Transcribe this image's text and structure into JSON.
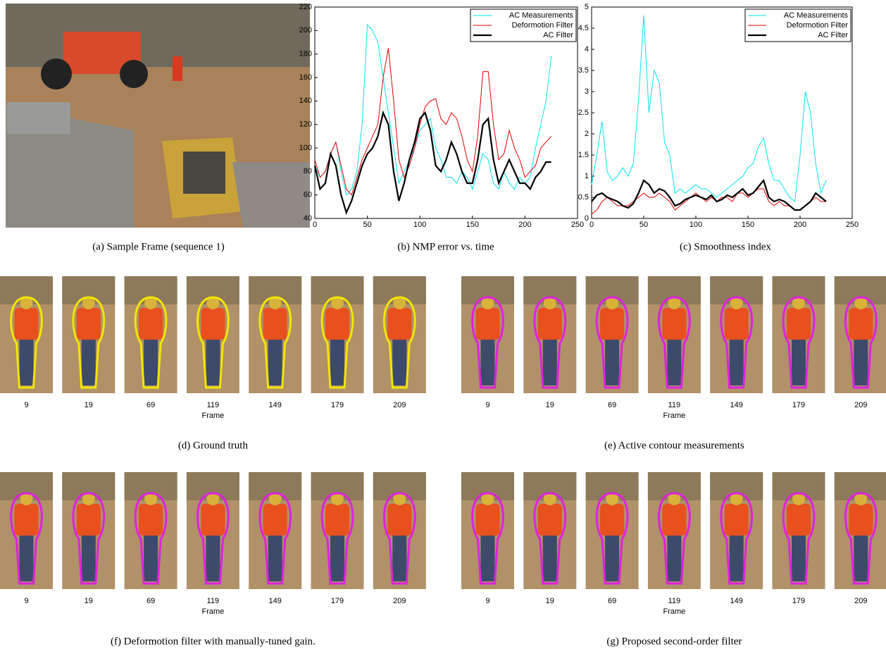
{
  "sample_frame": {
    "caption": "(a) Sample Frame (sequence 1)"
  },
  "chart_data": [
    {
      "type": "line",
      "caption": "(b) NMP error vs. time",
      "x": [
        0,
        5,
        10,
        15,
        20,
        25,
        30,
        35,
        40,
        45,
        50,
        55,
        60,
        65,
        70,
        75,
        80,
        85,
        90,
        95,
        100,
        105,
        110,
        115,
        120,
        125,
        130,
        135,
        140,
        145,
        150,
        155,
        160,
        165,
        170,
        175,
        180,
        185,
        190,
        195,
        200,
        205,
        210,
        215,
        220,
        225
      ],
      "series": [
        {
          "name": "AC Measurements",
          "color": "#00e5ee",
          "width": 1,
          "values": [
            85,
            75,
            80,
            95,
            105,
            80,
            60,
            65,
            80,
            120,
            205,
            200,
            190,
            160,
            130,
            100,
            70,
            80,
            90,
            100,
            115,
            120,
            125,
            100,
            90,
            75,
            75,
            70,
            80,
            75,
            65,
            80,
            95,
            90,
            70,
            65,
            80,
            70,
            65,
            75,
            70,
            75,
            100,
            120,
            140,
            178
          ]
        },
        {
          "name": "Deformotion Filter",
          "color": "#e00000",
          "width": 1,
          "values": [
            90,
            75,
            80,
            95,
            105,
            85,
            65,
            60,
            75,
            90,
            100,
            110,
            120,
            160,
            185,
            140,
            90,
            75,
            85,
            100,
            120,
            135,
            140,
            142,
            125,
            120,
            130,
            125,
            110,
            90,
            80,
            110,
            165,
            165,
            120,
            90,
            95,
            115,
            100,
            90,
            75,
            80,
            85,
            100,
            105,
            110
          ]
        },
        {
          "name": "AC Filter",
          "color": "#000000",
          "width": 2.2,
          "values": [
            85,
            65,
            70,
            95,
            85,
            60,
            45,
            55,
            70,
            85,
            95,
            100,
            110,
            130,
            120,
            80,
            55,
            70,
            90,
            105,
            125,
            130,
            115,
            85,
            80,
            90,
            105,
            95,
            80,
            70,
            70,
            90,
            120,
            125,
            90,
            70,
            80,
            90,
            80,
            70,
            70,
            65,
            75,
            80,
            88,
            88
          ]
        }
      ],
      "xlim": [
        0,
        250
      ],
      "xticks": [
        0,
        50,
        100,
        150,
        200,
        250
      ],
      "ylim": [
        40,
        220
      ],
      "yticks": [
        40,
        60,
        80,
        100,
        120,
        140,
        160,
        180,
        200,
        220
      ],
      "legend": "upper right"
    },
    {
      "type": "line",
      "caption": "(c) Smoothness index",
      "x": [
        0,
        5,
        10,
        15,
        20,
        25,
        30,
        35,
        40,
        45,
        50,
        55,
        60,
        65,
        70,
        75,
        80,
        85,
        90,
        95,
        100,
        105,
        110,
        115,
        120,
        125,
        130,
        135,
        140,
        145,
        150,
        155,
        160,
        165,
        170,
        175,
        180,
        185,
        190,
        195,
        200,
        205,
        210,
        215,
        220,
        225
      ],
      "series": [
        {
          "name": "AC Measurements",
          "color": "#00e5ee",
          "width": 1,
          "values": [
            0.8,
            1.5,
            2.3,
            1.1,
            0.9,
            1.0,
            1.2,
            1.0,
            1.3,
            2.8,
            4.8,
            2.5,
            3.5,
            3.2,
            1.8,
            1.5,
            0.6,
            0.7,
            0.6,
            0.7,
            0.8,
            0.7,
            0.7,
            0.6,
            0.5,
            0.6,
            0.7,
            0.8,
            0.9,
            1.0,
            1.2,
            1.3,
            1.7,
            1.9,
            1.3,
            0.9,
            0.9,
            0.7,
            0.5,
            0.4,
            1.5,
            3.0,
            2.5,
            1.3,
            0.6,
            0.9
          ]
        },
        {
          "name": "Deformotion Filter",
          "color": "#e00000",
          "width": 1,
          "values": [
            0.1,
            0.2,
            0.4,
            0.5,
            0.4,
            0.3,
            0.3,
            0.3,
            0.4,
            0.5,
            0.6,
            0.5,
            0.5,
            0.6,
            0.5,
            0.4,
            0.2,
            0.3,
            0.4,
            0.5,
            0.6,
            0.5,
            0.4,
            0.5,
            0.4,
            0.5,
            0.5,
            0.4,
            0.6,
            0.6,
            0.5,
            0.6,
            0.7,
            0.7,
            0.4,
            0.3,
            0.4,
            0.3,
            0.3,
            0.2,
            0.2,
            0.3,
            0.4,
            0.5,
            0.4,
            0.4
          ]
        },
        {
          "name": "AC Filter",
          "color": "#000000",
          "width": 2.2,
          "values": [
            0.4,
            0.55,
            0.6,
            0.5,
            0.45,
            0.4,
            0.3,
            0.25,
            0.35,
            0.6,
            0.9,
            0.8,
            0.6,
            0.7,
            0.65,
            0.5,
            0.3,
            0.35,
            0.45,
            0.5,
            0.55,
            0.5,
            0.45,
            0.55,
            0.4,
            0.45,
            0.55,
            0.5,
            0.6,
            0.7,
            0.55,
            0.6,
            0.75,
            0.9,
            0.5,
            0.4,
            0.45,
            0.4,
            0.3,
            0.2,
            0.2,
            0.3,
            0.4,
            0.6,
            0.5,
            0.4
          ]
        }
      ],
      "xlim": [
        0,
        250
      ],
      "xticks": [
        0,
        50,
        100,
        150,
        200,
        250
      ],
      "ylim": [
        0,
        5
      ],
      "yticks": [
        0,
        0.5,
        1,
        1.5,
        2,
        2.5,
        3,
        3.5,
        4,
        4.5,
        5
      ],
      "legend": "upper right"
    }
  ],
  "strips": [
    {
      "caption": "(d) Ground truth",
      "frames": [
        "9",
        "19",
        "69",
        "119",
        "149",
        "179",
        "209"
      ],
      "xlabel": "Frame",
      "contour_color": "#f2e600"
    },
    {
      "caption": "(e) Active contour measurements",
      "frames": [
        "9",
        "19",
        "69",
        "119",
        "149",
        "179",
        "209"
      ],
      "xlabel": "Frame",
      "contour_color": "#e020e0"
    },
    {
      "caption": "(f) Deformotion filter with manually-tuned gain.",
      "frames": [
        "9",
        "19",
        "69",
        "119",
        "149",
        "179",
        "209"
      ],
      "xlabel": "Frame",
      "contour_color": "#e020e0"
    },
    {
      "caption": "(g) Proposed second-order filter",
      "frames": [
        "9",
        "19",
        "69",
        "119",
        "149",
        "179",
        "209"
      ],
      "xlabel": "Frame",
      "contour_color": "#e020e0"
    }
  ]
}
